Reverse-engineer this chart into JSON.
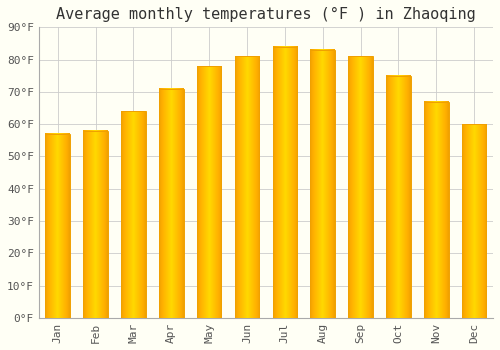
{
  "title": "Average monthly temperatures (°F ) in Zhaoqing",
  "months": [
    "Jan",
    "Feb",
    "Mar",
    "Apr",
    "May",
    "Jun",
    "Jul",
    "Aug",
    "Sep",
    "Oct",
    "Nov",
    "Dec"
  ],
  "values": [
    57,
    58,
    64,
    71,
    78,
    81,
    84,
    83,
    81,
    75,
    67,
    60
  ],
  "bar_color_center": "#FFD84D",
  "bar_color_edge": "#F0A000",
  "background_color": "#FFFFF5",
  "grid_color": "#CCCCCC",
  "ylim": [
    0,
    90
  ],
  "yticks": [
    0,
    10,
    20,
    30,
    40,
    50,
    60,
    70,
    80,
    90
  ],
  "title_fontsize": 11,
  "tick_fontsize": 8,
  "font_family": "monospace"
}
